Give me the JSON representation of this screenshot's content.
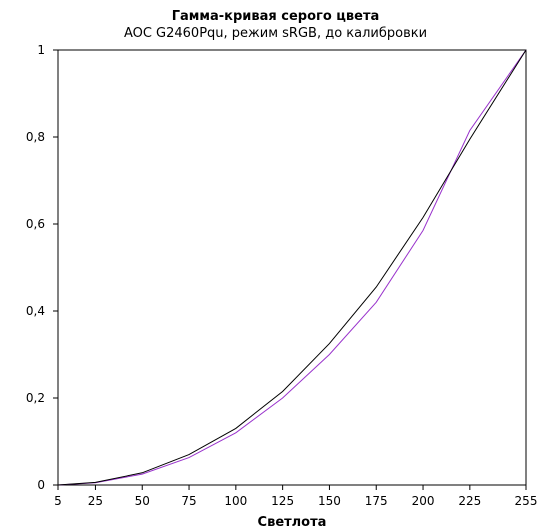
{
  "chart_data": {
    "type": "line",
    "title": "Гамма-кривая  серого цвета",
    "subtitle": "AOC G2460Pqu, режим sRGB, до калибровки",
    "xlabel": "Светлота",
    "ylabel": "",
    "x": [
      5,
      25,
      50,
      75,
      100,
      125,
      150,
      175,
      200,
      225,
      255
    ],
    "x_tick_labels": [
      "5",
      "25",
      "50",
      "75",
      "100",
      "125",
      "150",
      "175",
      "200",
      "225",
      "255"
    ],
    "xlim": [
      5,
      255
    ],
    "ylim": [
      0,
      1
    ],
    "y_ticks": [
      0,
      0.2,
      0.4,
      0.6,
      0.8,
      1
    ],
    "y_tick_labels": [
      "0",
      "0,2",
      "0,4",
      "0,6",
      "0,8",
      "1"
    ],
    "grid": false,
    "legend": "none",
    "series": [
      {
        "color": "#000000",
        "values": [
          0.0,
          0.006,
          0.028,
          0.07,
          0.13,
          0.215,
          0.325,
          0.455,
          0.615,
          0.795,
          1.0
        ]
      },
      {
        "color": "#9933cc",
        "values": [
          0.0,
          0.005,
          0.025,
          0.063,
          0.12,
          0.2,
          0.3,
          0.42,
          0.585,
          0.815,
          1.0
        ]
      }
    ]
  }
}
